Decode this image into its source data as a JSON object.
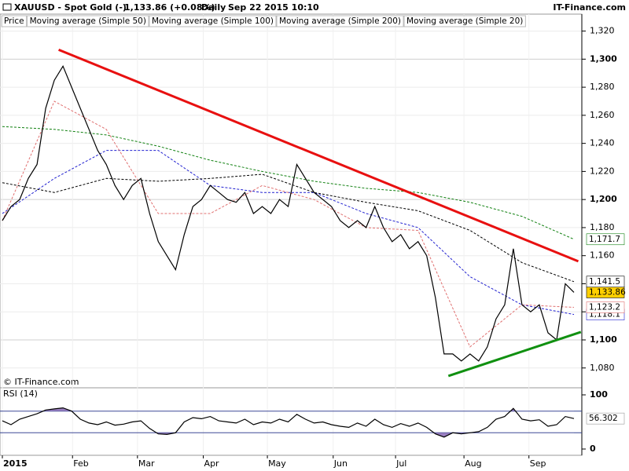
{
  "header": {
    "symbol": "XAUUSD - Spot Gold (-)",
    "quote": "1,133.86 (+0.08%)",
    "period": "Daily",
    "datetime": "Sep 22 2015 10:10",
    "brand": "IT-Finance.com",
    "copyright": "© IT-Finance.com"
  },
  "chart_data": [
    {
      "type": "line",
      "grid": true,
      "xlim": [
        0,
        66
      ],
      "xticks": [
        {
          "value": 0,
          "label": "2015"
        },
        {
          "value": 8.1,
          "label": "Feb"
        },
        {
          "value": 15.6,
          "label": "Mar"
        },
        {
          "value": 23.2,
          "label": "Apr"
        },
        {
          "value": 30.6,
          "label": "May"
        },
        {
          "value": 38.2,
          "label": "Jun"
        },
        {
          "value": 45.4,
          "label": "Jul"
        },
        {
          "value": 53.3,
          "label": "Aug"
        },
        {
          "value": 60.8,
          "label": "Sep"
        }
      ],
      "ylim": [
        1067,
        1322
      ],
      "yticks": [
        {
          "value": 1080,
          "label": "1,080"
        },
        {
          "value": 1100,
          "label": "1,100"
        },
        {
          "value": 1120,
          "label": "1,120"
        },
        {
          "value": 1140,
          "label": "1,140"
        },
        {
          "value": 1160,
          "label": "1,160"
        },
        {
          "value": 1180,
          "label": "1,180"
        },
        {
          "value": 1200,
          "label": "1,200"
        },
        {
          "value": 1220,
          "label": "1,220"
        },
        {
          "value": 1240,
          "label": "1,240"
        },
        {
          "value": 1260,
          "label": "1,260"
        },
        {
          "value": 1280,
          "label": "1,280"
        },
        {
          "value": 1300,
          "label": "1,300"
        },
        {
          "value": 1320,
          "label": "1,320"
        }
      ],
      "series": [
        {
          "name": "Price",
          "color": "#000000",
          "label_bg": "#ffd000",
          "last_label": "1,133.86",
          "values": [
            1185,
            1195,
            1200,
            1215,
            1225,
            1265,
            1285,
            1295,
            1280,
            1265,
            1250,
            1235,
            1225,
            1210,
            1200,
            1210,
            1215,
            1190,
            1170,
            1160,
            1150,
            1175,
            1195,
            1200,
            1210,
            1205,
            1200,
            1198,
            1205,
            1190,
            1195,
            1190,
            1200,
            1195,
            1225,
            1215,
            1205,
            1200,
            1195,
            1185,
            1180,
            1185,
            1180,
            1195,
            1180,
            1170,
            1175,
            1165,
            1170,
            1160,
            1130,
            1090,
            1090,
            1085,
            1090,
            1085,
            1095,
            1115,
            1125,
            1165,
            1125,
            1120,
            1125,
            1105,
            1100,
            1140,
            1133.86
          ]
        },
        {
          "name": "Moving average (Simple 50)",
          "color": "#2020d0",
          "dashed": true,
          "last_label": "1,118.1",
          "x": [
            0,
            6,
            12,
            18,
            24,
            30,
            36,
            42,
            48,
            54,
            60,
            66
          ],
          "values": [
            1190,
            1215,
            1235,
            1235,
            1210,
            1205,
            1205,
            1190,
            1180,
            1145,
            1125,
            1118.1
          ]
        },
        {
          "name": "Moving average (Simple 100)",
          "color": "#000000",
          "dashed": true,
          "last_label": "1,141.5",
          "x": [
            0,
            6,
            12,
            18,
            24,
            30,
            36,
            42,
            48,
            54,
            60,
            66
          ],
          "values": [
            1212,
            1205,
            1215,
            1213,
            1215,
            1218,
            1205,
            1198,
            1192,
            1178,
            1155,
            1141.5
          ]
        },
        {
          "name": "Moving average (Simple 200)",
          "color": "#108010",
          "dashed": true,
          "last_label": "1,171.7",
          "x": [
            0,
            6,
            12,
            18,
            24,
            30,
            36,
            42,
            48,
            54,
            60,
            66
          ],
          "values": [
            1252,
            1250,
            1246,
            1238,
            1228,
            1220,
            1213,
            1208,
            1205,
            1198,
            1188,
            1171.7
          ]
        },
        {
          "name": "Moving average (Simple 20)",
          "color": "#e07070",
          "dashed": true,
          "last_label": "1,123.2",
          "x": [
            0,
            6,
            12,
            18,
            24,
            30,
            36,
            42,
            48,
            54,
            60,
            66
          ],
          "values": [
            1185,
            1270,
            1250,
            1190,
            1190,
            1210,
            1200,
            1180,
            1178,
            1095,
            1125,
            1123.2
          ]
        }
      ],
      "trendlines": [
        {
          "color": "#e81010",
          "x": [
            6.5,
            66.5
          ],
          "values": [
            1306.7,
            1156
          ]
        },
        {
          "color": "#109010",
          "x": [
            51.5,
            66.8
          ],
          "values": [
            1074.3,
            1105.6
          ]
        }
      ]
    },
    {
      "type": "line",
      "title": "RSI (14)",
      "ylim": [
        0,
        100
      ],
      "yticks": [
        0,
        100
      ],
      "levels": [
        70,
        30
      ],
      "fill": "#9a7fc0",
      "series": [
        {
          "color": "#000000",
          "last_label": "56.302",
          "values": [
            52,
            45,
            55,
            60,
            65,
            72,
            74,
            76,
            70,
            55,
            48,
            45,
            50,
            44,
            46,
            50,
            52,
            38,
            28,
            27,
            30,
            50,
            58,
            56,
            60,
            52,
            50,
            48,
            55,
            45,
            50,
            48,
            55,
            50,
            64,
            55,
            48,
            50,
            45,
            42,
            40,
            48,
            42,
            55,
            45,
            40,
            47,
            42,
            48,
            40,
            28,
            22,
            30,
            28,
            30,
            32,
            40,
            55,
            60,
            75,
            55,
            52,
            54,
            42,
            45,
            60,
            56.302
          ]
        }
      ]
    }
  ]
}
